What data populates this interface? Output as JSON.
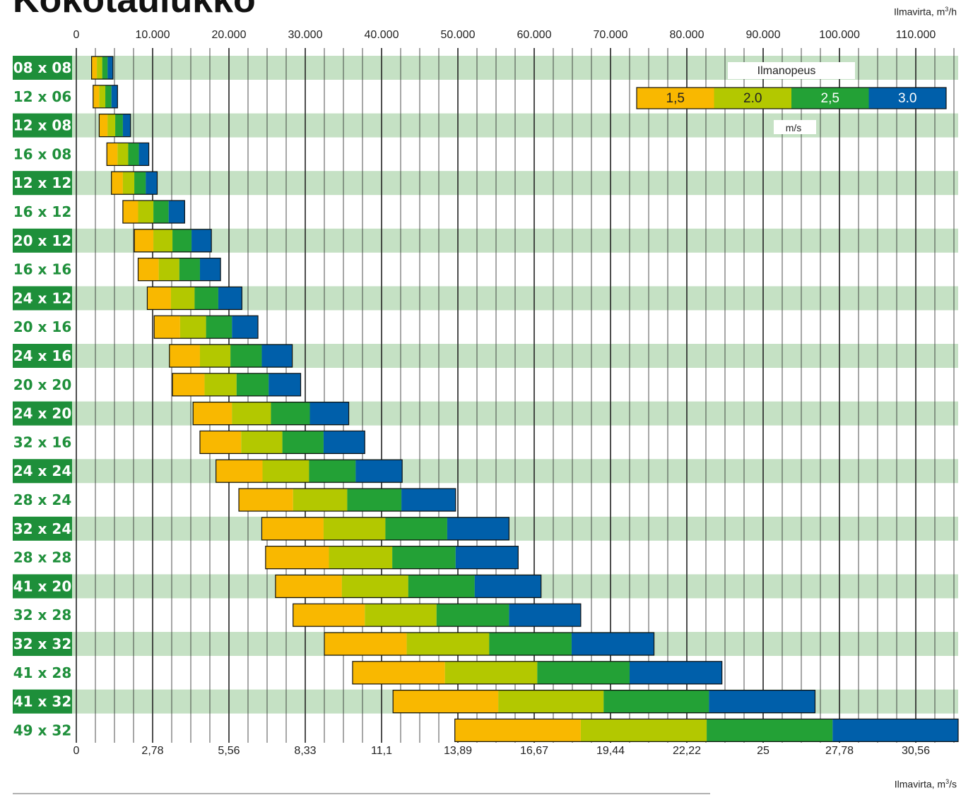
{
  "header": {
    "title": "Kokotaulukko"
  },
  "axes": {
    "top_label": "Ilmavirta, m",
    "bottom_label": "Ilmavirta, m",
    "unit_sup": "3",
    "top_unit_suffix": "/h",
    "bottom_unit_suffix": "/s"
  },
  "legend": {
    "title": "Ilmanopeus",
    "unit": "m/s",
    "items": [
      {
        "label": "1,5",
        "color": "#F9B800"
      },
      {
        "label": "2.0",
        "color": "#B3C800"
      },
      {
        "label": "2,5",
        "color": "#23A136"
      },
      {
        "label": "3.0",
        "color": "#005FAA"
      }
    ]
  },
  "chart_data": {
    "type": "bar",
    "orientation": "horizontal",
    "stacked": true,
    "top_axis": {
      "ticks": [
        0,
        10000,
        20000,
        30000,
        40000,
        50000,
        60000,
        70000,
        80000,
        90000,
        100000,
        110000
      ],
      "tick_labels": [
        "0",
        "10.000",
        "20.000",
        "30.000",
        "40.000",
        "50.000",
        "60.000",
        "70.000",
        "80.000",
        "90.000",
        "100.000",
        "110.000"
      ],
      "range": [
        0,
        115000
      ]
    },
    "bottom_axis": {
      "tick_labels": [
        "0",
        "2,78",
        "5,56",
        "8,33",
        "11,1",
        "13,89",
        "16,67",
        "19,44",
        "22,22",
        "25",
        "27,78",
        "30,56"
      ]
    },
    "grid": "vertical lines every 2500 m3/h, bold every 10000",
    "categories": [
      "08 x 08",
      "12 x 06",
      "12 x 08",
      "16 x 08",
      "12 x 12",
      "16 x 12",
      "20 x 12",
      "16 x 16",
      "24 x 12",
      "20 x 16",
      "24 x 16",
      "20 x 20",
      "24 x 20",
      "32 x 16",
      "24 x 24",
      "28 x 24",
      "32 x 24",
      "28 x 28",
      "41 x 20",
      "32 x 28",
      "32 x 32",
      "41 x 28",
      "41 x 32",
      "49 x 32"
    ],
    "series": [
      {
        "name": "1,5",
        "color": "#F9B800",
        "values": [
          [
            2000,
            2700
          ],
          [
            2200,
            3000
          ],
          [
            3000,
            4100
          ],
          [
            4000,
            5400
          ],
          [
            4600,
            6100
          ],
          [
            6100,
            8100
          ],
          [
            7600,
            10100
          ],
          [
            8100,
            10800
          ],
          [
            9300,
            12400
          ],
          [
            10200,
            13600
          ],
          [
            12200,
            16200
          ],
          [
            12600,
            16800
          ],
          [
            15300,
            20400
          ],
          [
            16200,
            21600
          ],
          [
            18300,
            24400
          ],
          [
            21300,
            28400
          ],
          [
            24300,
            32400
          ],
          [
            24800,
            33100
          ],
          [
            26100,
            34800
          ],
          [
            28400,
            37800
          ],
          [
            32500,
            43300
          ],
          [
            36200,
            48300
          ],
          [
            41500,
            55300
          ],
          [
            49600,
            66100
          ]
        ]
      },
      {
        "name": "2.0",
        "color": "#B3C800",
        "values": [
          [
            2700,
            3400
          ],
          [
            3000,
            3800
          ],
          [
            4100,
            5100
          ],
          [
            5400,
            6800
          ],
          [
            6100,
            7600
          ],
          [
            8100,
            10100
          ],
          [
            10100,
            12600
          ],
          [
            10800,
            13500
          ],
          [
            12400,
            15500
          ],
          [
            13600,
            17000
          ],
          [
            16200,
            20200
          ],
          [
            16800,
            21000
          ],
          [
            20400,
            25500
          ],
          [
            21600,
            27000
          ],
          [
            24400,
            30500
          ],
          [
            28400,
            35500
          ],
          [
            32400,
            40500
          ],
          [
            33100,
            41400
          ],
          [
            34800,
            43500
          ],
          [
            37800,
            47200
          ],
          [
            43300,
            54100
          ],
          [
            48300,
            60400
          ],
          [
            55300,
            69100
          ],
          [
            66100,
            82600
          ]
        ]
      },
      {
        "name": "2,5",
        "color": "#23A136",
        "values": [
          [
            3400,
            4100
          ],
          [
            3800,
            4600
          ],
          [
            5100,
            6100
          ],
          [
            6800,
            8200
          ],
          [
            7600,
            9100
          ],
          [
            10100,
            12100
          ],
          [
            12600,
            15100
          ],
          [
            13500,
            16200
          ],
          [
            15500,
            18600
          ],
          [
            17000,
            20400
          ],
          [
            20200,
            24300
          ],
          [
            21000,
            25200
          ],
          [
            25500,
            30600
          ],
          [
            27000,
            32400
          ],
          [
            30500,
            36600
          ],
          [
            35500,
            42600
          ],
          [
            40500,
            48600
          ],
          [
            41400,
            49700
          ],
          [
            43500,
            52200
          ],
          [
            47200,
            56700
          ],
          [
            54100,
            64900
          ],
          [
            60400,
            72500
          ],
          [
            69100,
            82900
          ],
          [
            82600,
            99100
          ]
        ]
      },
      {
        "name": "3.0",
        "color": "#005FAA",
        "values": [
          [
            4100,
            4800
          ],
          [
            4600,
            5400
          ],
          [
            6100,
            7100
          ],
          [
            8200,
            9500
          ],
          [
            9100,
            10600
          ],
          [
            12100,
            14200
          ],
          [
            15100,
            17700
          ],
          [
            16200,
            18900
          ],
          [
            18600,
            21700
          ],
          [
            20400,
            23800
          ],
          [
            24300,
            28300
          ],
          [
            25200,
            29400
          ],
          [
            30600,
            35700
          ],
          [
            32400,
            37800
          ],
          [
            36600,
            42700
          ],
          [
            42600,
            49700
          ],
          [
            48600,
            56700
          ],
          [
            49700,
            57900
          ],
          [
            52200,
            60900
          ],
          [
            56700,
            66100
          ],
          [
            64900,
            75700
          ],
          [
            72500,
            84600
          ],
          [
            82900,
            96800
          ],
          [
            99100,
            115600
          ]
        ]
      }
    ]
  }
}
